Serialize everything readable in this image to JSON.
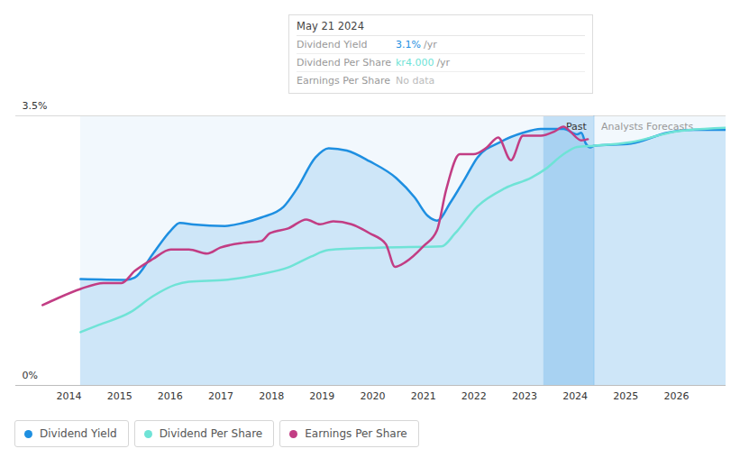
{
  "chart_data": {
    "type": "line",
    "xlim": [
      2012.95,
      2026.98
    ],
    "xticks": [
      2014,
      2015,
      2016,
      2017,
      2018,
      2019,
      2020,
      2021,
      2022,
      2023,
      2024,
      2025,
      2026
    ],
    "ylim": [
      0,
      3.5
    ],
    "yticks": [
      {
        "value": 0,
        "label": "0%"
      },
      {
        "value": 3.5,
        "label": "3.5%"
      }
    ],
    "y2lim": [
      0,
      4.5
    ],
    "grid": true,
    "past_range": [
      2023.38,
      2024.37
    ],
    "past_label": "Past",
    "forecast_label": "Analysts Forecasts",
    "tooltip": {
      "title": "May 21 2024",
      "rows": [
        {
          "label": "Dividend Yield",
          "value": "3.1%",
          "unit": "/yr"
        },
        {
          "label": "Dividend Per Share",
          "value": "kr4.000",
          "unit": "/yr"
        },
        {
          "label": "Earnings Per Share",
          "value": "No data"
        }
      ]
    },
    "series": [
      {
        "name": "Dividend Yield",
        "type": "area",
        "color": "#1e8fe1",
        "x": [
          2014.23,
          2015.12,
          2015.3,
          2015.66,
          2016.01,
          2016.19,
          2016.46,
          2017.08,
          2017.44,
          2017.8,
          2018.24,
          2018.5,
          2018.87,
          2019.13,
          2019.49,
          2019.94,
          2020.47,
          2020.83,
          2021.09,
          2021.27,
          2021.54,
          2021.81,
          2022.07,
          2022.52,
          2022.97,
          2023.32,
          2023.77,
          2024.04,
          2024.12,
          2024.21,
          2024.3,
          2024.37,
          2025.1,
          2025.82,
          2026.35,
          2026.98
        ],
        "values": [
          1.38,
          1.37,
          1.4,
          1.71,
          2.01,
          2.11,
          2.09,
          2.07,
          2.11,
          2.18,
          2.32,
          2.55,
          2.96,
          3.08,
          3.05,
          2.91,
          2.69,
          2.44,
          2.2,
          2.14,
          2.38,
          2.67,
          2.96,
          3.16,
          3.28,
          3.33,
          3.33,
          3.26,
          3.28,
          3.14,
          3.09,
          3.11,
          3.14,
          3.28,
          3.32,
          3.32
        ]
      },
      {
        "name": "Dividend Per Share",
        "axis": "y2",
        "color": "#6fe3d6",
        "x": [
          2014.23,
          2014.59,
          2015.21,
          2015.66,
          2016.1,
          2016.37,
          2017.08,
          2017.8,
          2018.33,
          2018.78,
          2019.13,
          2020.11,
          2021.36,
          2021.63,
          2022.07,
          2022.61,
          2023.14,
          2023.41,
          2023.77,
          2024.04,
          2024.37,
          2025.1,
          2026.0,
          2026.98
        ],
        "values": [
          0.89,
          1.01,
          1.22,
          1.49,
          1.68,
          1.73,
          1.76,
          1.86,
          1.97,
          2.15,
          2.26,
          2.3,
          2.32,
          2.54,
          2.99,
          3.29,
          3.47,
          3.61,
          3.86,
          3.98,
          4.0,
          4.06,
          4.24,
          4.3
        ]
      },
      {
        "name": "Earnings Per Share",
        "axis": "y2",
        "color": "#c23d84",
        "x": [
          2013.48,
          2013.79,
          2014.23,
          2014.68,
          2015.04,
          2015.3,
          2015.66,
          2016.01,
          2016.37,
          2016.73,
          2016.99,
          2017.44,
          2017.8,
          2017.97,
          2018.33,
          2018.69,
          2018.96,
          2019.22,
          2019.58,
          2019.94,
          2020.26,
          2020.44,
          2020.65,
          2021.01,
          2021.27,
          2021.45,
          2021.72,
          2021.99,
          2022.25,
          2022.48,
          2022.73,
          2022.97,
          2023.32,
          2023.59,
          2023.77,
          2023.9,
          2024.12,
          2024.25
        ],
        "values": [
          1.34,
          1.46,
          1.61,
          1.71,
          1.71,
          1.91,
          2.11,
          2.27,
          2.27,
          2.2,
          2.3,
          2.38,
          2.41,
          2.54,
          2.62,
          2.77,
          2.69,
          2.74,
          2.69,
          2.54,
          2.36,
          1.98,
          2.06,
          2.33,
          2.59,
          3.26,
          3.86,
          3.86,
          3.97,
          4.14,
          3.76,
          4.17,
          4.17,
          4.24,
          4.32,
          4.24,
          4.09,
          4.11
        ]
      }
    ]
  }
}
